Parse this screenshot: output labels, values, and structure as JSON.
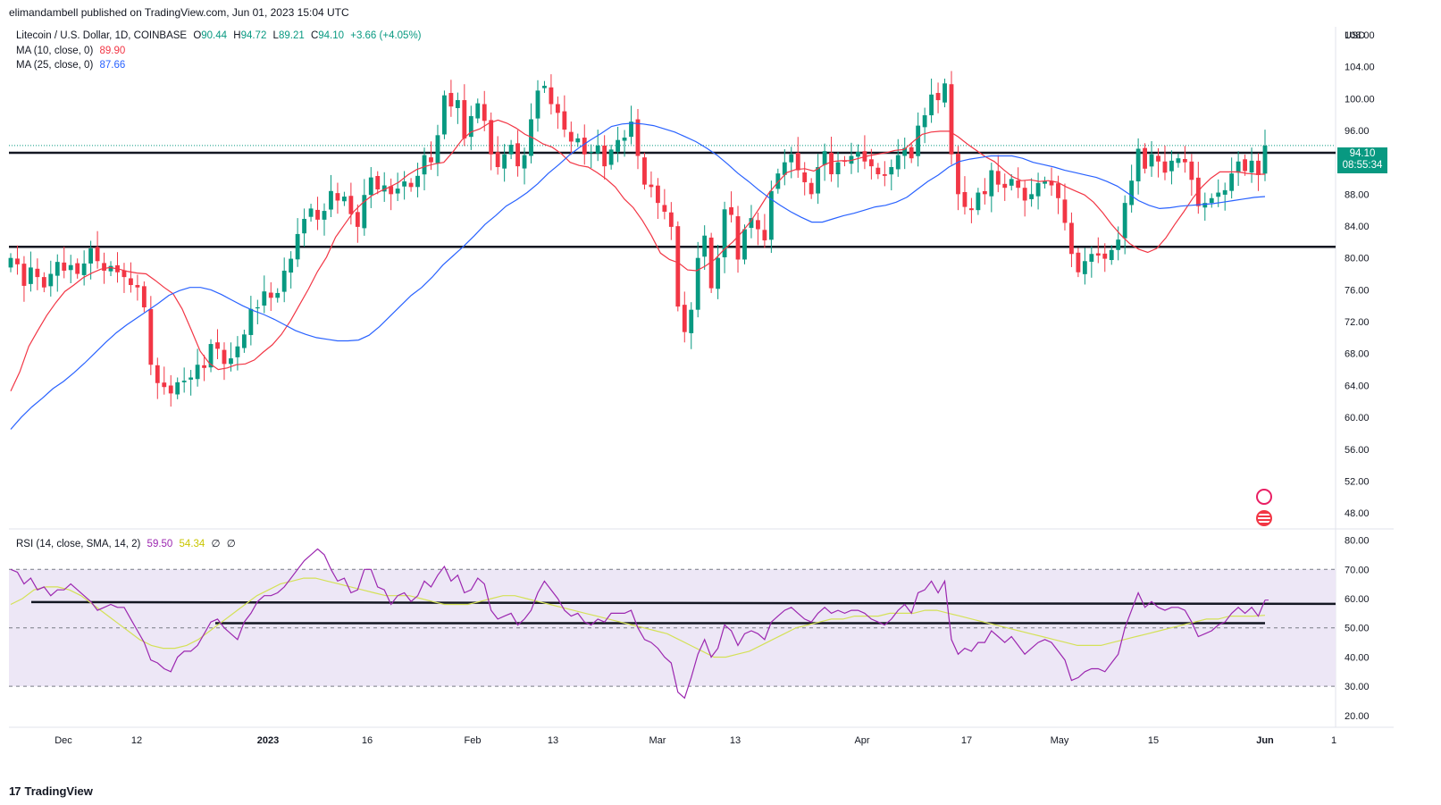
{
  "header": {
    "publisher": "elimandambell published on TradingView.com, Jun 01, 2023 15:04 UTC"
  },
  "legend": {
    "symbol": "Litecoin / U.S. Dollar, 1D, COINBASE",
    "o_label": "O",
    "o_value": "90.44",
    "h_label": "H",
    "h_value": "94.72",
    "l_label": "L",
    "l_value": "89.21",
    "c_label": "C",
    "c_value": "94.10",
    "change": "+3.66 (+4.05%)",
    "ma10_label": "MA (10, close, 0)",
    "ma10_value": "89.90",
    "ma25_label": "MA (25, close, 0)",
    "ma25_value": "87.66",
    "rsi_label": "RSI (14, close, SMA, 14, 2)",
    "rsi_value": "59.50",
    "rsi_sma_value": "54.34",
    "rsi_extra1": "∅",
    "rsi_extra2": "∅"
  },
  "price_badge": {
    "price": "94.10",
    "countdown": "08:55:34"
  },
  "currency": "USD",
  "footer": {
    "brand": "TradingView"
  },
  "colors": {
    "up": "#089981",
    "down": "#f23645",
    "ma10": "#f23645",
    "ma25": "#2962ff",
    "rsi": "#9c27b0",
    "rsi_sma": "#d4e157",
    "rsi_band": "#ede7f6"
  },
  "chart_data": [
    {
      "type": "candlestick",
      "title": "Litecoin / U.S. Dollar, 1D, COINBASE",
      "x_ticks": [
        "Dec",
        "12",
        "2023",
        "16",
        "Feb",
        "13",
        "Mar",
        "13",
        "Apr",
        "17",
        "May",
        "15",
        "Jun",
        "1"
      ],
      "y_ticks": [
        48,
        52,
        56,
        60,
        64,
        68,
        72,
        76,
        80,
        84,
        88,
        92,
        96,
        100,
        104,
        108
      ],
      "ylim": [
        46,
        109
      ],
      "horizontal_lines": [
        93.2,
        81.4
      ],
      "closes": [
        80.0,
        79.2,
        76.5,
        78.8,
        77.6,
        76.3,
        78.0,
        79.5,
        78.4,
        79.1,
        78.0,
        79.3,
        81.2,
        79.6,
        78.4,
        79.0,
        78.2,
        77.6,
        76.6,
        76.3,
        73.8,
        66.6,
        64.3,
        63.8,
        63.0,
        64.4,
        64.6,
        65.0,
        66.6,
        66.2,
        69.2,
        68.6,
        66.7,
        67.4,
        68.9,
        70.4,
        73.6,
        73.8,
        75.8,
        75.0,
        75.6,
        78.4,
        79.9,
        83.0,
        84.9,
        86.2,
        84.8,
        85.9,
        88.4,
        87.2,
        87.7,
        85.5,
        83.9,
        87.9,
        90.1,
        88.6,
        89.1,
        88.0,
        88.7,
        89.6,
        88.9,
        90.3,
        92.9,
        92.0,
        95.4,
        100.4,
        99.0,
        99.8,
        95.0,
        97.8,
        99.4,
        97.2,
        93.0,
        91.4,
        93.0,
        94.2,
        91.5,
        92.9,
        97.4,
        101.0,
        101.6,
        99.3,
        98.2,
        96.1,
        94.6,
        95.0,
        93.0,
        93.3,
        94.1,
        91.5,
        93.6,
        94.8,
        95.1,
        97.1,
        92.8,
        89.2,
        88.9,
        86.9,
        85.8,
        83.9,
        73.9,
        70.7,
        73.5,
        80.0,
        82.8,
        76.2,
        80.0,
        86.1,
        85.4,
        79.8,
        83.6,
        85.0,
        83.6,
        82.2,
        88.4,
        90.6,
        92.0,
        93.0,
        91.0,
        89.5,
        88.0,
        91.4,
        93.4,
        90.5,
        92.0,
        92.1,
        92.8,
        93.3,
        92.1,
        91.5,
        90.5,
        90.3,
        91.4,
        92.9,
        93.8,
        92.5,
        96.6,
        97.9,
        100.5,
        99.8,
        101.9,
        93.0,
        88.0,
        86.4,
        86.0,
        88.2,
        88.0,
        91.0,
        89.2,
        88.8,
        89.9,
        88.8,
        87.2,
        88.0,
        89.4,
        89.6,
        89.1,
        87.5,
        84.4,
        80.5,
        78.2,
        79.6,
        80.5,
        80.3,
        79.9,
        81.0,
        82.3,
        86.9,
        89.7,
        93.7,
        91.2,
        93.0,
        92.1,
        90.7,
        92.2,
        92.5,
        92.0,
        89.8,
        86.5,
        86.9,
        87.5,
        88.2,
        88.5,
        90.6,
        92.1,
        90.9,
        92.2,
        90.4,
        94.1
      ],
      "ma10": [
        63.3,
        65.7,
        68.9,
        70.9,
        72.8,
        74.4,
        75.8,
        76.6,
        77.5,
        78.1,
        78.6,
        78.8,
        78.6,
        78.3,
        78.1,
        78.0,
        77.2,
        76.3,
        75.5,
        73.6,
        71.0,
        68.3,
        66.8,
        66.0,
        66.2,
        66.6,
        66.7,
        67.2,
        68.2,
        69.1,
        70.4,
        72.1,
        74.1,
        76.1,
        78.3,
        80.1,
        82.6,
        84.2,
        85.8,
        86.9,
        87.8,
        88.4,
        88.9,
        89.5,
        90.4,
        91.1,
        91.5,
        91.8,
        92.0,
        93.3,
        94.8,
        95.8,
        96.2,
        96.9,
        97.3,
        96.9,
        96.3,
        95.5,
        95.0,
        94.3,
        93.9,
        93.1,
        92.0,
        91.6,
        91.4,
        90.7,
        89.9,
        88.9,
        87.4,
        86.3,
        84.7,
        82.8,
        80.6,
        79.8,
        79.4,
        78.5,
        78.4,
        79.0,
        79.8,
        81.0,
        82.0,
        83.2,
        84.6,
        86.3,
        88.1,
        89.5,
        90.7,
        91.1,
        91.2,
        90.9,
        91.6,
        92.1,
        92.2,
        92.2,
        92.5,
        92.8,
        93.0,
        93.2,
        93.5,
        93.6,
        94.6,
        95.5,
        95.8,
        95.9,
        95.9,
        95.2,
        94.3,
        93.5,
        92.7,
        92.1,
        91.1,
        90.2,
        89.7,
        89.8,
        89.6,
        89.7,
        89.5,
        88.9,
        88.4,
        87.9,
        87.0,
        85.7,
        84.2,
        82.9,
        81.8,
        81.1,
        80.7,
        81.2,
        82.5,
        84.2,
        85.8,
        87.5,
        88.9,
        90.0,
        90.8,
        90.8,
        90.8,
        90.6,
        90.5,
        90.5
      ],
      "ma25": [
        58.5,
        60.0,
        61.3,
        62.4,
        63.6,
        64.5,
        65.6,
        66.8,
        68.1,
        69.4,
        70.6,
        71.6,
        72.5,
        73.4,
        74.3,
        75.3,
        75.9,
        76.3,
        76.3,
        76.0,
        75.4,
        74.7,
        74.0,
        73.4,
        72.9,
        72.3,
        71.6,
        70.9,
        70.4,
        70.0,
        69.8,
        69.6,
        69.6,
        69.7,
        70.3,
        71.4,
        72.7,
        74.0,
        75.3,
        76.3,
        77.6,
        79.1,
        80.3,
        81.5,
        82.8,
        84.2,
        85.3,
        86.5,
        87.3,
        88.2,
        89.3,
        90.6,
        91.7,
        92.9,
        93.9,
        94.8,
        95.6,
        96.5,
        96.8,
        96.9,
        96.8,
        96.6,
        96.2,
        95.8,
        95.2,
        94.6,
        93.8,
        92.9,
        91.8,
        90.6,
        89.6,
        88.5,
        87.5,
        86.6,
        85.8,
        85.1,
        84.5,
        84.5,
        84.9,
        85.3,
        85.6,
        86.0,
        86.4,
        86.6,
        87.0,
        87.6,
        88.6,
        89.6,
        90.4,
        91.4,
        92.1,
        92.4,
        92.6,
        92.8,
        92.8,
        92.8,
        92.5,
        92.0,
        91.7,
        91.4,
        91.0,
        90.7,
        90.4,
        90.1,
        89.6,
        89.0,
        88.1,
        87.2,
        86.6,
        86.2,
        86.3,
        86.5,
        86.6,
        86.7,
        86.8,
        87.0,
        87.2,
        87.4,
        87.6,
        87.7
      ]
    },
    {
      "type": "line",
      "title": "RSI (14, close, SMA, 14, 2)",
      "y_ticks": [
        20,
        30,
        40,
        50,
        60,
        70,
        80
      ],
      "ylim": [
        16,
        82
      ],
      "band": [
        30,
        70
      ],
      "midline": 50,
      "horizontal_lines": [
        58.8,
        51.6
      ],
      "series": [
        {
          "name": "RSI",
          "values": [
            70,
            69,
            65,
            67,
            63,
            64,
            61,
            63,
            63,
            65,
            63,
            61,
            59,
            56,
            57,
            58,
            57,
            57,
            53,
            49,
            45,
            39,
            38,
            36,
            35,
            40,
            42,
            42,
            44,
            48,
            52,
            53,
            50,
            48,
            46,
            52,
            55,
            59,
            61,
            61,
            62,
            64,
            67,
            70,
            73,
            75,
            77,
            75,
            70,
            66,
            67,
            62,
            63,
            70,
            70,
            64,
            63,
            58,
            61,
            62,
            59,
            61,
            66,
            64,
            68,
            71,
            66,
            68,
            62,
            63,
            67,
            65,
            56,
            53,
            54,
            55,
            51,
            53,
            56,
            62,
            66,
            63,
            60,
            56,
            54,
            55,
            52,
            51,
            53,
            52,
            55,
            55,
            55,
            56,
            50,
            46,
            45,
            43,
            40,
            38,
            28,
            26,
            33,
            41,
            46,
            40,
            43,
            51,
            49,
            44,
            48,
            49,
            48,
            46,
            52,
            54,
            56,
            57,
            55,
            53,
            52,
            55,
            57,
            55,
            56,
            55,
            56,
            56,
            55,
            53,
            52,
            51,
            53,
            56,
            58,
            55,
            62,
            63,
            66,
            62,
            66,
            46,
            41,
            43,
            42,
            45,
            45,
            49,
            47,
            45,
            47,
            44,
            41,
            43,
            45,
            46,
            45,
            42,
            39,
            32,
            33,
            35,
            36,
            36,
            35,
            38,
            41,
            50,
            56,
            62,
            57,
            59,
            57,
            56,
            57,
            57,
            56,
            52,
            47,
            48,
            49,
            51,
            52,
            55,
            57,
            55,
            57,
            54,
            59.5
          ]
        },
        {
          "name": "RSI SMA",
          "values": [
            58,
            60,
            63,
            64,
            64,
            63,
            61,
            58,
            55,
            52,
            49,
            46,
            44,
            43,
            43,
            44,
            46,
            49,
            52,
            55,
            58,
            61,
            63,
            65,
            66,
            67,
            67,
            66,
            65,
            64,
            63,
            62,
            61,
            61,
            61,
            60,
            59,
            58,
            58,
            58,
            59,
            60,
            61,
            61,
            60,
            59,
            58,
            57,
            56,
            55,
            54,
            53,
            52,
            51,
            50,
            49,
            48,
            46,
            44,
            42,
            40,
            40,
            41,
            42,
            44,
            46,
            48,
            50,
            51,
            52,
            53,
            53,
            54,
            54,
            54,
            55,
            55,
            55,
            56,
            56,
            55,
            54,
            53,
            52,
            51,
            50,
            49,
            48,
            47,
            46,
            45,
            44,
            44,
            44,
            45,
            46,
            47,
            48,
            49,
            50,
            51,
            52,
            53,
            53,
            54,
            54,
            54,
            54.3
          ]
        }
      ]
    }
  ]
}
